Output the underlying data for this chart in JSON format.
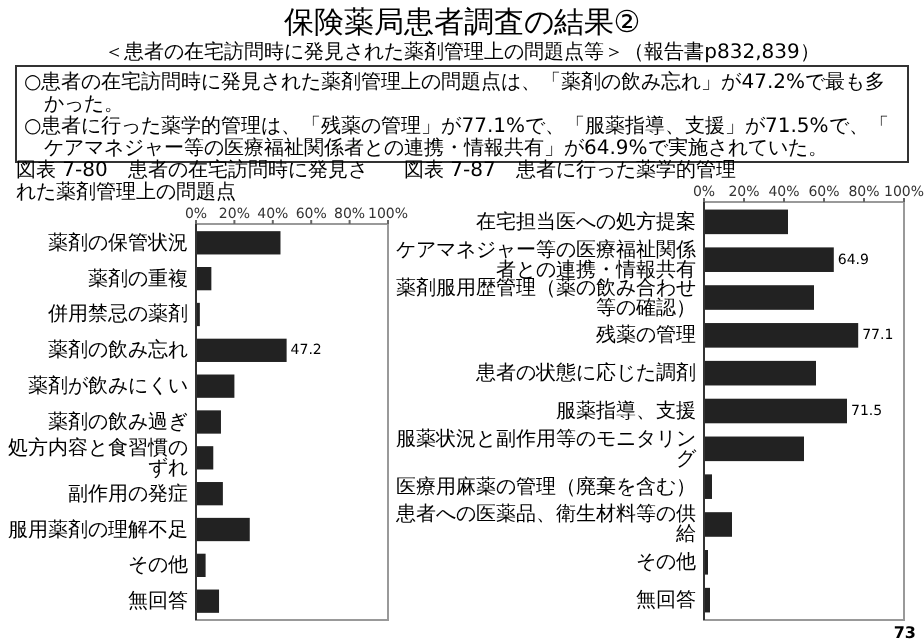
{
  "chart_data": [
    {
      "type": "other",
      "title": "保険薬局患者調査の結果②",
      "subtitle": "＜患者の在宅訪問時に発見された薬剤管理上の問題点等＞（報告書p832,839）",
      "annotations": [
        "○患者の在宅訪問時に発見された薬剤管理上の問題点は、「薬剤の飲み忘れ」が47.2%で最も多かった。",
        "○患者に行った薬学的管理は、「残薬の管理」が77.1%で、「服薬指導、支援」が71.5%で、「ケアマネジャー等の医療福祉関係者との連携・情報共有」が64.9%で実施されていた。",
        "73"
      ]
    },
    {
      "type": "bar",
      "orientation": "horizontal",
      "title": "図表 7-80　患者の在宅訪問時に発見された薬剤管理上の問題点",
      "categories": [
        "薬剤の保管状況",
        "薬剤の重複",
        "併用禁忌の薬剤",
        "薬剤の飲み忘れ",
        "薬剤が飲みにくい",
        "薬剤の飲み過ぎ",
        "処方内容と食習慣のずれ",
        "副作用の発症",
        "服用薬剤の理解不足",
        "その他",
        "無回答"
      ],
      "values": [
        44,
        8,
        2,
        47.2,
        20,
        13,
        9,
        14,
        28,
        5,
        12
      ],
      "value_labels": [
        null,
        null,
        null,
        "47.2",
        null,
        null,
        null,
        null,
        null,
        null,
        null
      ],
      "color": "#222222",
      "xlim": [
        0,
        100
      ],
      "xticks": [
        {
          "value": 0,
          "label": "0%"
        },
        {
          "value": 20,
          "label": "20%"
        },
        {
          "value": 40,
          "label": "40%"
        },
        {
          "value": 60,
          "label": "60%"
        },
        {
          "value": 80,
          "label": "80%"
        },
        {
          "value": 100,
          "label": "100%"
        }
      ]
    },
    {
      "type": "bar",
      "orientation": "horizontal",
      "title": "図表 7-87　患者に行った薬学的管理",
      "categories": [
        "在宅担当医への処方提案",
        "ケアマネジャー等の医療福祉関係者との連携・情報共有",
        "薬剤服用歴管理（薬の飲み合わせ等の確認）",
        "残薬の管理",
        "患者の状態に応じた調剤",
        "服薬指導、支援",
        "服薬状況と副作用等のモニタリング",
        "医療用麻薬の管理（廃棄を含む）",
        "患者への医薬品、衛生材料等の供給",
        "その他",
        "無回答"
      ],
      "values": [
        42,
        64.9,
        55,
        77.1,
        56,
        71.5,
        50,
        4,
        14,
        2,
        3
      ],
      "value_labels": [
        null,
        "64.9",
        null,
        "77.1",
        null,
        "71.5",
        null,
        null,
        null,
        null,
        null
      ],
      "color": "#222222",
      "xlim": [
        0,
        100
      ],
      "xticks": [
        {
          "value": 0,
          "label": "0%"
        },
        {
          "value": 20,
          "label": "20%"
        },
        {
          "value": 40,
          "label": "40%"
        },
        {
          "value": 60,
          "label": "60%"
        },
        {
          "value": 80,
          "label": "80%"
        },
        {
          "value": 100,
          "label": "100%"
        }
      ]
    }
  ]
}
